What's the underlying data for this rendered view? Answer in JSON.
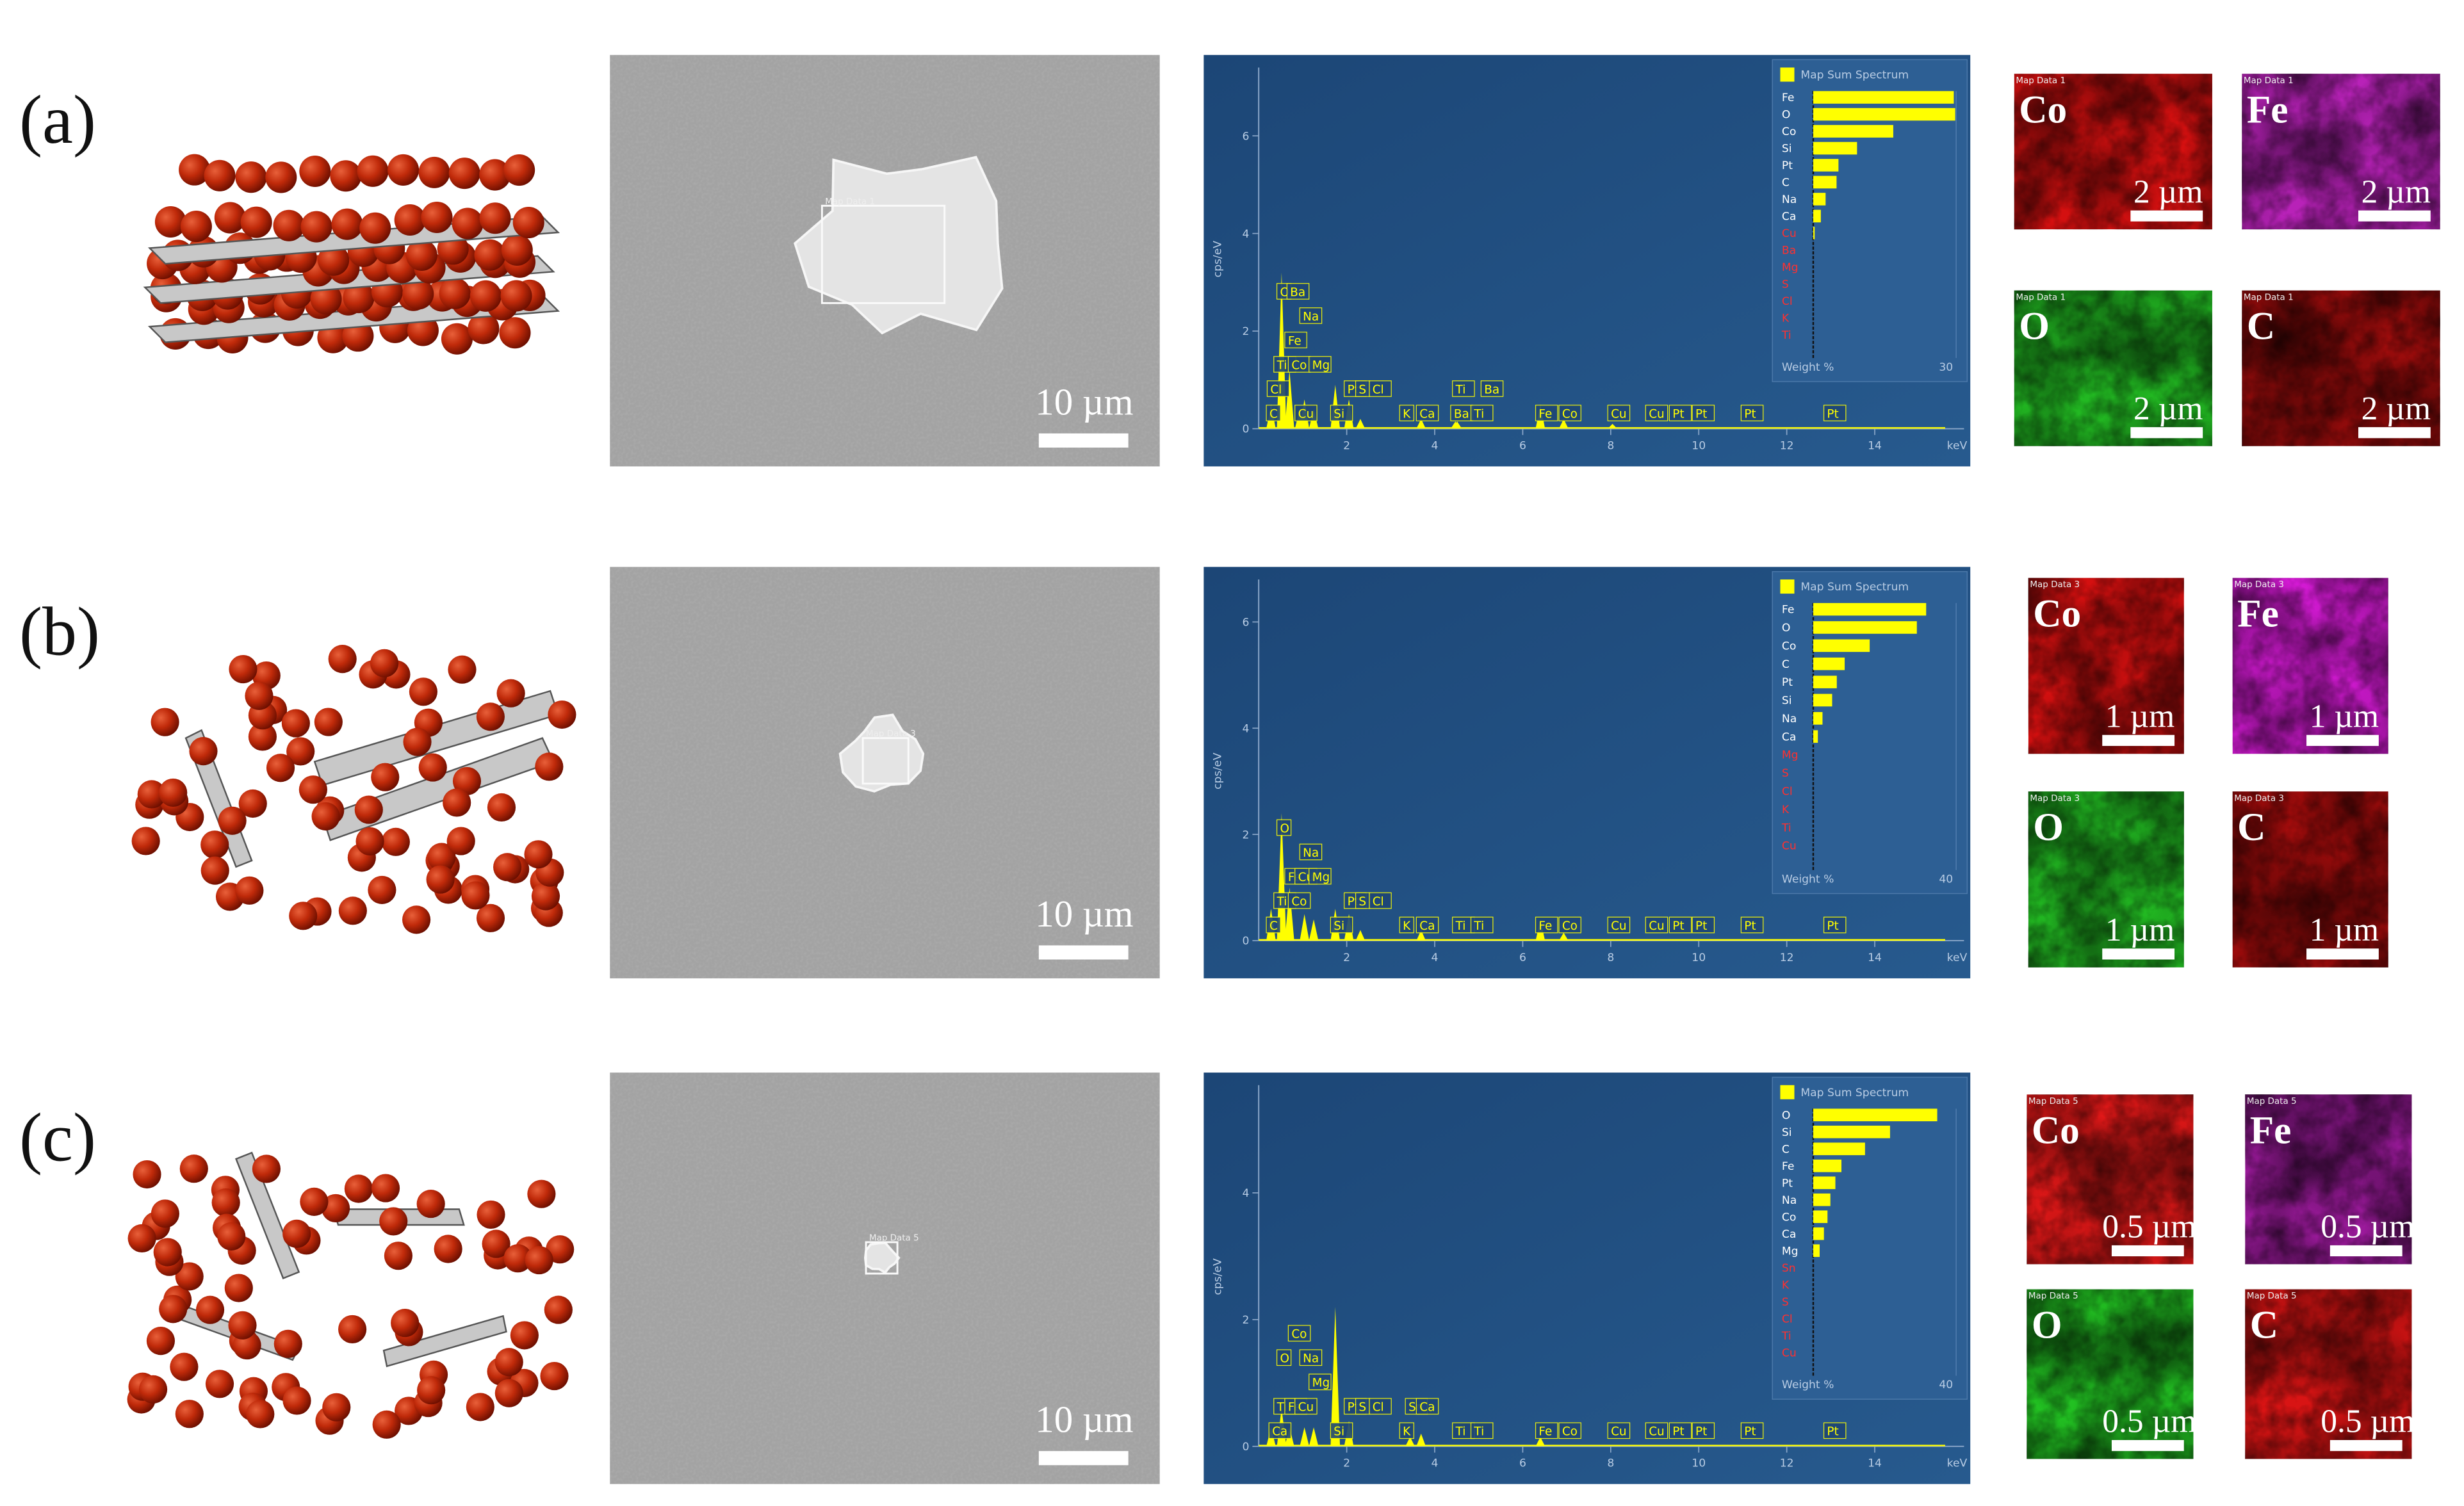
{
  "panels": [
    {
      "label": "(a)",
      "sem": {
        "scale_label": "10 µm",
        "box_label": "Map Data 1"
      },
      "spectrum": {
        "type": "line",
        "color": "#ffff00",
        "y_label": "cps/eV",
        "x_unit": "keV",
        "xlim": [
          0,
          15.6
        ],
        "xticks": [
          2,
          4,
          6,
          8,
          10,
          12,
          14
        ],
        "ylim": [
          0,
          7.4
        ],
        "yticks": [
          0,
          2,
          4,
          6
        ],
        "x": [
          0.28,
          0.52,
          0.7,
          0.93,
          1.04,
          1.25,
          1.74,
          2.05,
          2.31,
          3.69,
          4.47,
          4.51,
          6.4,
          6.93,
          8.04
        ],
        "values": [
          0.5,
          3.2,
          1.2,
          0.4,
          0.6,
          0.4,
          0.9,
          0.6,
          0.2,
          0.2,
          0.15,
          0.15,
          0.5,
          0.2,
          0.1
        ],
        "peak_labels": [
          {
            "label": "C",
            "x": 0.28
          },
          {
            "label": "Cl",
            "x": 0.3
          },
          {
            "label": "Ti",
            "x": 0.45
          },
          {
            "label": "Cu",
            "x": 0.93
          },
          {
            "label": "Co",
            "x": 0.78
          },
          {
            "label": "Fe",
            "x": 0.7
          },
          {
            "label": "O",
            "x": 0.52
          },
          {
            "label": "Ba",
            "x": 0.75
          },
          {
            "label": "Na",
            "x": 1.04
          },
          {
            "label": "Mg",
            "x": 1.25
          },
          {
            "label": "Si",
            "x": 1.74
          },
          {
            "label": "Pt",
            "x": 2.05
          },
          {
            "label": "S",
            "x": 2.31
          },
          {
            "label": "Cl",
            "x": 2.62
          },
          {
            "label": "K",
            "x": 3.31
          },
          {
            "label": "Ca",
            "x": 3.69
          },
          {
            "label": "Ba",
            "x": 4.47
          },
          {
            "label": "Ti",
            "x": 4.51
          },
          {
            "label": "Ti",
            "x": 4.93
          },
          {
            "label": "Ba",
            "x": 5.16
          },
          {
            "label": "Fe",
            "x": 6.4
          },
          {
            "label": "Co",
            "x": 6.93
          },
          {
            "label": "Cu",
            "x": 8.04
          },
          {
            "label": "Cu",
            "x": 8.9
          },
          {
            "label": "Pt",
            "x": 9.44
          },
          {
            "label": "Pt",
            "x": 9.96
          },
          {
            "label": "Pt",
            "x": 11.07
          },
          {
            "label": "Pt",
            "x": 12.95
          }
        ],
        "inset": {
          "title": "Map Sum Spectrum",
          "xlabel": "Weight %",
          "xlim": [
            0,
            30
          ],
          "xticks": [
            30
          ],
          "categories": [
            "Fe",
            "O",
            "Co",
            "Si",
            "Pt",
            "C",
            "Na",
            "Ca",
            "Cu",
            "Ba",
            "Mg",
            "S",
            "Cl",
            "K",
            "Ti"
          ],
          "values": [
            29.5,
            29.8,
            16.8,
            9.2,
            5.3,
            4.9,
            2.6,
            1.6,
            0.3,
            0,
            0,
            0,
            0,
            0,
            0
          ],
          "label_colors": [
            "#fff",
            "#fff",
            "#fff",
            "#fff",
            "#fff",
            "#fff",
            "#fff",
            "#fff",
            "#ff3030",
            "#ff3030",
            "#ff3030",
            "#ff3030",
            "#ff3030",
            "#ff3030",
            "#ff3030"
          ]
        }
      },
      "maps": [
        {
          "element": "Co",
          "header": "Map Data 1",
          "scale_label": "2 µm",
          "color": "#d41010"
        },
        {
          "element": "Fe",
          "header": "Map Data 1",
          "scale_label": "2 µm",
          "color": "#b822b8"
        },
        {
          "element": "O",
          "header": "Map Data 1",
          "scale_label": "2 µm",
          "color": "#22b822"
        },
        {
          "element": "C",
          "header": "Map Data 1",
          "scale_label": "2 µm",
          "color": "#9a0c0c"
        }
      ]
    },
    {
      "label": "(b)",
      "sem": {
        "scale_label": "10 µm",
        "box_label": "Map Data 3"
      },
      "spectrum": {
        "type": "line",
        "color": "#ffff00",
        "y_label": "cps/eV",
        "x_unit": "keV",
        "xlim": [
          0,
          15.6
        ],
        "xticks": [
          2,
          4,
          6,
          8,
          10,
          12,
          14
        ],
        "ylim": [
          0,
          6.8
        ],
        "yticks": [
          0,
          2,
          4,
          6
        ],
        "x": [
          0.28,
          0.52,
          0.7,
          1.04,
          1.25,
          1.74,
          2.05,
          2.31,
          3.69,
          6.4,
          6.93
        ],
        "values": [
          0.6,
          2.4,
          1.0,
          0.5,
          0.4,
          0.6,
          0.5,
          0.2,
          0.2,
          0.4,
          0.15
        ],
        "peak_labels": [
          {
            "label": "C",
            "x": 0.28
          },
          {
            "label": "Ti",
            "x": 0.45
          },
          {
            "label": "Co",
            "x": 0.78
          },
          {
            "label": "Fe",
            "x": 0.7
          },
          {
            "label": "O",
            "x": 0.52
          },
          {
            "label": "Cu",
            "x": 0.93
          },
          {
            "label": "Na",
            "x": 1.04
          },
          {
            "label": "Mg",
            "x": 1.25
          },
          {
            "label": "Si",
            "x": 1.74
          },
          {
            "label": "Pt",
            "x": 2.05
          },
          {
            "label": "S",
            "x": 2.31
          },
          {
            "label": "Cl",
            "x": 2.62
          },
          {
            "label": "K",
            "x": 3.31
          },
          {
            "label": "Ca",
            "x": 3.69
          },
          {
            "label": "Ti",
            "x": 4.51
          },
          {
            "label": "Ti",
            "x": 4.93
          },
          {
            "label": "Fe",
            "x": 6.4
          },
          {
            "label": "Co",
            "x": 6.93
          },
          {
            "label": "Cu",
            "x": 8.04
          },
          {
            "label": "Cu",
            "x": 8.9
          },
          {
            "label": "Pt",
            "x": 9.44
          },
          {
            "label": "Pt",
            "x": 9.96
          },
          {
            "label": "Pt",
            "x": 11.07
          },
          {
            "label": "Pt",
            "x": 12.95
          }
        ],
        "inset": {
          "title": "Map Sum Spectrum",
          "xlabel": "Weight %",
          "xlim": [
            0,
            40
          ],
          "xticks": [
            40
          ],
          "categories": [
            "Fe",
            "O",
            "Co",
            "C",
            "Pt",
            "Si",
            "Na",
            "Ca",
            "Mg",
            "S",
            "Cl",
            "K",
            "Ti",
            "Cu"
          ],
          "values": [
            31.6,
            29,
            15.8,
            8.8,
            6.6,
            5.3,
            2.6,
            1.3,
            0,
            0,
            0,
            0,
            0,
            0
          ],
          "label_colors": [
            "#fff",
            "#fff",
            "#fff",
            "#fff",
            "#fff",
            "#fff",
            "#fff",
            "#fff",
            "#ff3030",
            "#ff3030",
            "#ff3030",
            "#ff3030",
            "#ff3030",
            "#ff3030"
          ]
        }
      },
      "maps": [
        {
          "element": "Co",
          "header": "Map Data 3",
          "scale_label": "1 µm",
          "color": "#d41010"
        },
        {
          "element": "Fe",
          "header": "Map Data 3",
          "scale_label": "1 µm",
          "color": "#d21ad2"
        },
        {
          "element": "O",
          "header": "Map Data 3",
          "scale_label": "1 µm",
          "color": "#22b822"
        },
        {
          "element": "C",
          "header": "Map Data 3",
          "scale_label": "1 µm",
          "color": "#a00c0c"
        }
      ]
    },
    {
      "label": "(c)",
      "sem": {
        "scale_label": "10 µm",
        "box_label": "Map Data 5"
      },
      "spectrum": {
        "type": "line",
        "color": "#ffff00",
        "y_label": "cps/eV",
        "x_unit": "keV",
        "xlim": [
          0,
          15.6
        ],
        "xticks": [
          2,
          4,
          6,
          8,
          10,
          12,
          14
        ],
        "ylim": [
          0,
          5.7
        ],
        "yticks": [
          0,
          2,
          4
        ],
        "x": [
          0.28,
          0.52,
          0.7,
          1.04,
          1.25,
          1.74,
          2.05,
          3.44,
          3.69,
          6.4
        ],
        "values": [
          0.3,
          0.6,
          0.3,
          0.3,
          0.3,
          2.2,
          0.4,
          0.15,
          0.2,
          0.15
        ],
        "peak_labels": [
          {
            "label": "Ca",
            "x": 0.34
          },
          {
            "label": "Ti",
            "x": 0.45
          },
          {
            "label": "Fe",
            "x": 0.7
          },
          {
            "label": "O",
            "x": 0.52
          },
          {
            "label": "Cu",
            "x": 0.93
          },
          {
            "label": "Co",
            "x": 0.78
          },
          {
            "label": "Na",
            "x": 1.04
          },
          {
            "label": "Mg",
            "x": 1.25
          },
          {
            "label": "Si",
            "x": 1.74
          },
          {
            "label": "Pt",
            "x": 2.05
          },
          {
            "label": "S",
            "x": 2.31
          },
          {
            "label": "Cl",
            "x": 2.62
          },
          {
            "label": "K",
            "x": 3.31
          },
          {
            "label": "Sn",
            "x": 3.44
          },
          {
            "label": "Ca",
            "x": 3.69
          },
          {
            "label": "Ti",
            "x": 4.51
          },
          {
            "label": "Ti",
            "x": 4.93
          },
          {
            "label": "Fe",
            "x": 6.4
          },
          {
            "label": "Co",
            "x": 6.93
          },
          {
            "label": "Cu",
            "x": 8.04
          },
          {
            "label": "Cu",
            "x": 8.9
          },
          {
            "label": "Pt",
            "x": 9.44
          },
          {
            "label": "Pt",
            "x": 9.96
          },
          {
            "label": "Pt",
            "x": 11.07
          },
          {
            "label": "Pt",
            "x": 12.95
          }
        ],
        "inset": {
          "title": "Map Sum Spectrum",
          "xlabel": "Weight %",
          "xlim": [
            0,
            40
          ],
          "xticks": [
            40
          ],
          "categories": [
            "O",
            "Si",
            "C",
            "Fe",
            "Pt",
            "Na",
            "Co",
            "Ca",
            "Mg",
            "Sn",
            "K",
            "S",
            "Cl",
            "Ti",
            "Cu"
          ],
          "values": [
            34.7,
            21.5,
            14.5,
            7.9,
            6.2,
            4.8,
            4,
            3,
            1.8,
            0,
            0,
            0,
            0,
            0,
            0
          ],
          "label_colors": [
            "#fff",
            "#fff",
            "#fff",
            "#fff",
            "#fff",
            "#fff",
            "#fff",
            "#fff",
            "#fff",
            "#ff3030",
            "#ff3030",
            "#ff3030",
            "#ff3030",
            "#ff3030",
            "#ff3030"
          ]
        }
      },
      "maps": [
        {
          "element": "Co",
          "header": "Map Data 5",
          "scale_label": "0.5 µm",
          "color": "#e01818"
        },
        {
          "element": "Fe",
          "header": "Map Data 5",
          "scale_label": "0.5 µm",
          "color": "#9a1a9a"
        },
        {
          "element": "O",
          "header": "Map Data 5",
          "scale_label": "0.5 µm",
          "color": "#22c022"
        },
        {
          "element": "C",
          "header": "Map Data 5",
          "scale_label": "0.5 µm",
          "color": "#d81414"
        }
      ]
    }
  ]
}
